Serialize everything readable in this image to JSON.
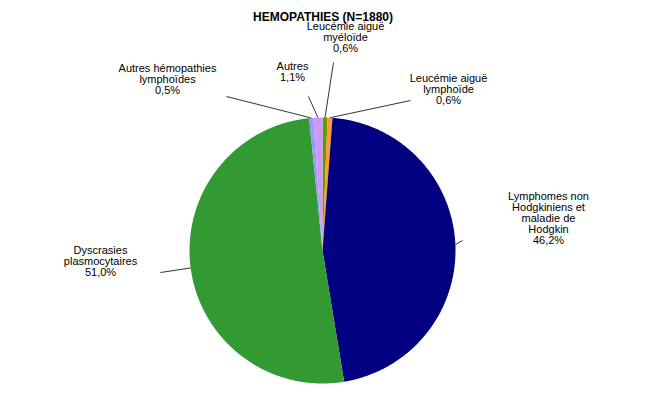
{
  "chart_data": {
    "type": "pie",
    "title": "HEMOPATHIES (N=1880)",
    "categories": [
      "Leucémie aiguë myéloïde",
      "Leucémie aiguë lymphoïde",
      "Lymphomes non Hodgkiniens et maladie de Hodgkin",
      "Dyscrasies plasmocytaires",
      "Autres hémopathies lymphoïdes",
      "Autres"
    ],
    "values": [
      0.6,
      0.6,
      46.2,
      51.0,
      0.5,
      1.1
    ],
    "value_labels": [
      "0,6%",
      "0,6%",
      "46,2%",
      "51,0%",
      "0,5%",
      "1,1%"
    ],
    "colors": [
      "#669900",
      "#ff9933",
      "#000080",
      "#339933",
      "#9999ff",
      "#cc99ff"
    ],
    "data_labels": true
  }
}
